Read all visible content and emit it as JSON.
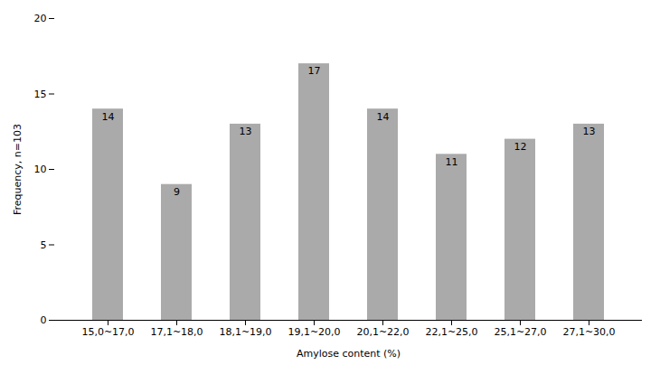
{
  "chart_data": {
    "type": "bar",
    "categories": [
      "15,0~17,0",
      "17,1~18,0",
      "18,1~19,0",
      "19,1~20,0",
      "20,1~22,0",
      "22,1~25,0",
      "25,1~27,0",
      "27,1~30,0"
    ],
    "values": [
      14,
      9,
      13,
      17,
      14,
      11,
      12,
      13
    ],
    "color": "#aaaaaa",
    "xlabel": "Amylose content (%)",
    "ylabel": "Frequency, n=103",
    "ylim": [
      0,
      20
    ],
    "yticks": [
      0,
      5,
      10,
      15,
      20
    ],
    "grid": false,
    "data_labels": true
  }
}
